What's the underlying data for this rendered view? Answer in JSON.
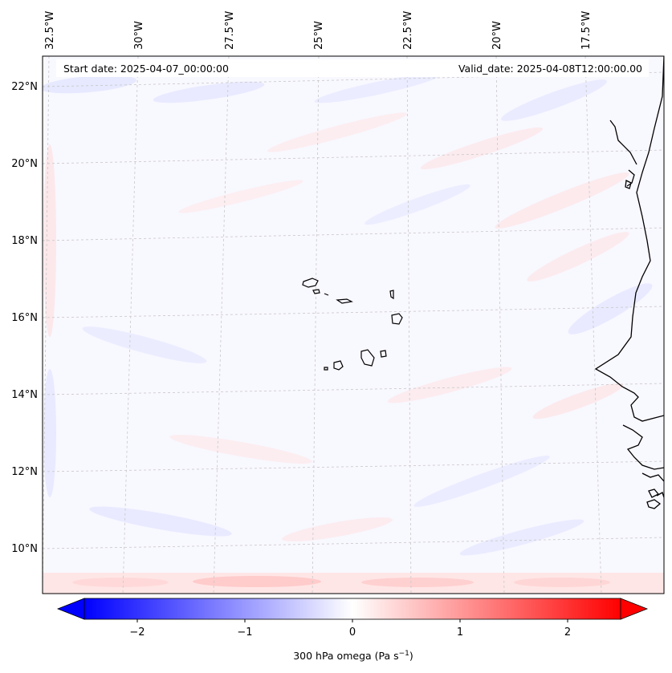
{
  "map": {
    "start_date_text": "Start date: 2025-04-07_00:00:00",
    "valid_date_text": "Valid_date: 2025-04-08T12:00:00.00",
    "lon_ticks": [
      "32.5°W",
      "30°W",
      "27.5°W",
      "25°W",
      "22.5°W",
      "20°W",
      "17.5°W"
    ],
    "lat_ticks": [
      "22°N",
      "20°N",
      "18°N",
      "16°N",
      "14°N",
      "12°N",
      "10°N"
    ],
    "coastline_color": "#000000",
    "gridline_color": "#c8c8c8"
  },
  "colorbar": {
    "ticks": [
      "−2",
      "−1",
      "0",
      "1",
      "2"
    ],
    "label_main": "300 hPa omega (Pa s",
    "label_exp": "−1",
    "label_close": ")",
    "color_min": "#0000ff",
    "color_mid": "#ffffff",
    "color_max": "#ff0000"
  }
}
